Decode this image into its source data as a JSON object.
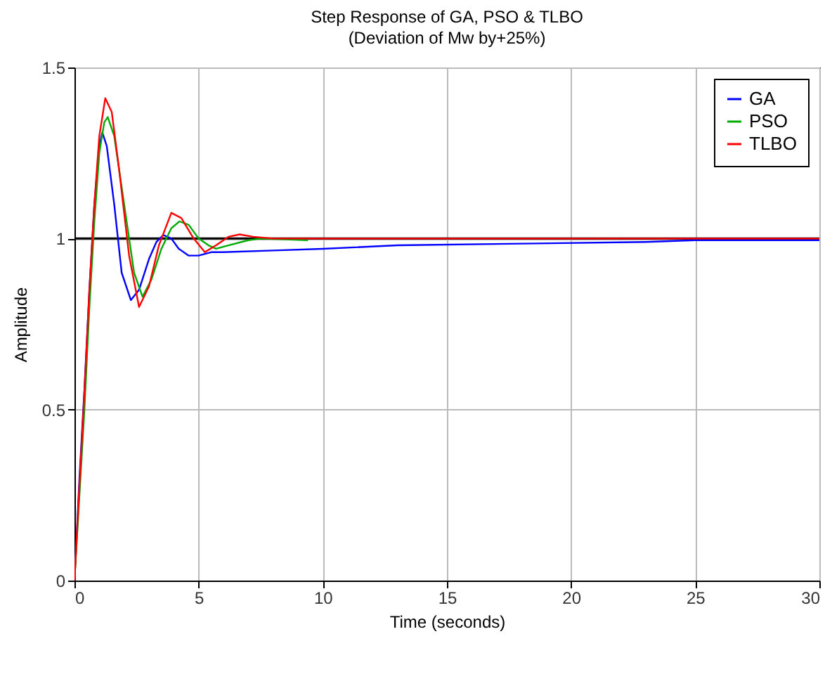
{
  "chart_data": {
    "type": "line",
    "title": "Step Response of GA, PSO & TLBO",
    "subtitle": "(Deviation of Mw by+25%)",
    "xlabel": "Time (seconds)",
    "ylabel": "Amplitude",
    "xlim": [
      0,
      30
    ],
    "xticks": [
      0,
      5,
      10,
      15,
      20,
      25,
      30
    ],
    "ylim": [
      0,
      1.5
    ],
    "yticks": [
      0,
      0.5,
      1,
      1.5
    ],
    "grid": true,
    "legend": "top right",
    "line_style": "solid",
    "marker": "none",
    "series": [
      {
        "name": "GA",
        "color": "#0000ff",
        "x": [
          0,
          0.2,
          0.4,
          0.6,
          0.8,
          1.0,
          1.12,
          1.3,
          1.6,
          1.9,
          2.27,
          2.6,
          3.0,
          3.3,
          3.58,
          3.9,
          4.2,
          4.6,
          5.0,
          5.5,
          6.0,
          8.0,
          10.0,
          13.0,
          18.0,
          23.0,
          25.0,
          30.0
        ],
        "values": [
          0,
          0.3,
          0.56,
          0.85,
          1.1,
          1.27,
          1.31,
          1.27,
          1.1,
          0.9,
          0.82,
          0.85,
          0.94,
          0.99,
          1.01,
          1.0,
          0.97,
          0.95,
          0.95,
          0.96,
          0.96,
          0.965,
          0.97,
          0.98,
          0.985,
          0.99,
          0.995,
          0.995
        ]
      },
      {
        "name": "PSO",
        "color": "#00aa00",
        "x": [
          0,
          0.2,
          0.4,
          0.6,
          0.8,
          1.0,
          1.2,
          1.34,
          1.6,
          2.0,
          2.4,
          2.74,
          3.1,
          3.5,
          3.9,
          4.23,
          4.6,
          5.0,
          5.4,
          5.7,
          6.2,
          7.0,
          7.5,
          9.4
        ],
        "values": [
          0,
          0.25,
          0.5,
          0.8,
          1.05,
          1.25,
          1.34,
          1.355,
          1.3,
          1.1,
          0.9,
          0.83,
          0.88,
          0.97,
          1.03,
          1.05,
          1.04,
          1.0,
          0.98,
          0.97,
          0.98,
          0.995,
          1.0,
          0.995
        ]
      },
      {
        "name": "TLBO",
        "color": "#ff0000",
        "x": [
          0,
          0.2,
          0.4,
          0.6,
          0.8,
          1.0,
          1.24,
          1.5,
          1.8,
          2.2,
          2.6,
          3.0,
          3.4,
          3.9,
          4.3,
          4.8,
          5.25,
          5.7,
          6.2,
          6.65,
          7.2,
          8.0,
          10.0,
          30.0
        ],
        "values": [
          0,
          0.28,
          0.55,
          0.85,
          1.1,
          1.3,
          1.41,
          1.37,
          1.2,
          0.95,
          0.8,
          0.86,
          0.98,
          1.075,
          1.06,
          1.0,
          0.96,
          0.98,
          1.005,
          1.012,
          1.005,
          1.0,
          1.0,
          1.0
        ]
      }
    ],
    "ref_lines": [
      {
        "axis": "y",
        "value": 1,
        "color": "#000000"
      }
    ]
  }
}
